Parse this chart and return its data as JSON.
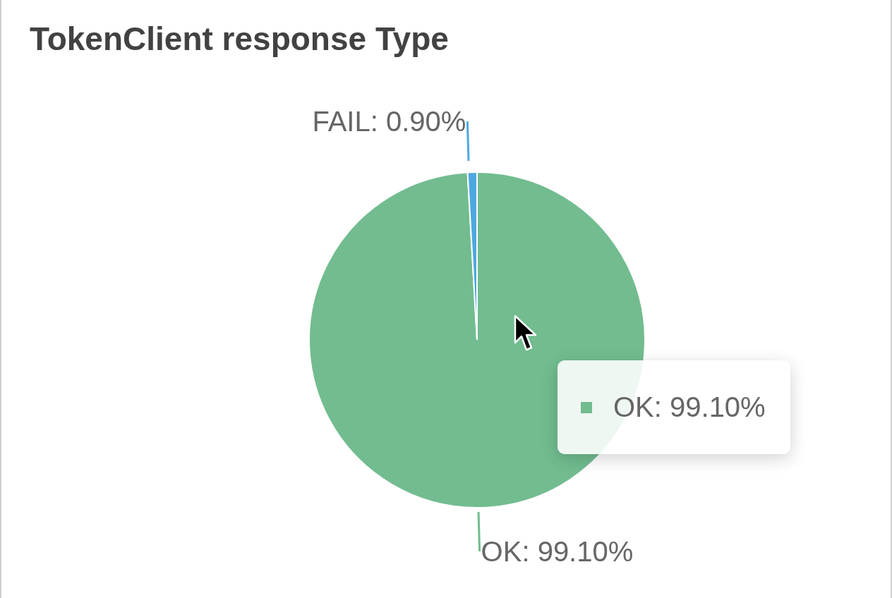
{
  "chart_data": {
    "type": "pie",
    "title": "TokenClient response Type",
    "categories": [
      "OK",
      "FAIL"
    ],
    "values": [
      99.1,
      0.9
    ],
    "colors": [
      "#72bc90",
      "#4ea8e0"
    ],
    "value_labels": [
      "99.10%",
      "0.90%"
    ],
    "annotations": [
      "OK: 99.10%"
    ]
  }
}
